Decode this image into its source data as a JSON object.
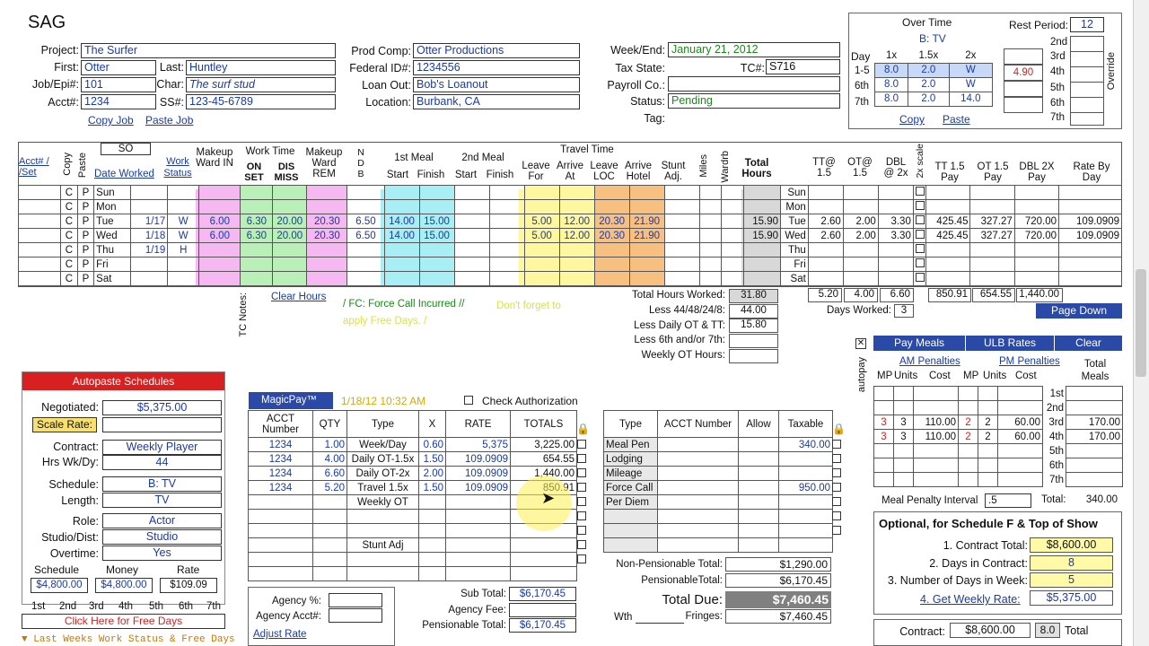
{
  "title": "SAG",
  "header": {
    "project_label": "Project:",
    "project": "The Surfer",
    "first_label": "First:",
    "first": "Otter",
    "last_label": "Last:",
    "last": "Huntley",
    "job_label": "Job/Epi#:",
    "job": "101",
    "char_label": "Char:",
    "char": "The surf stud",
    "acct_label": "Acct#:",
    "acct": "1234",
    "ss_label": "SS#:",
    "ss": "123-45-6789",
    "copy_job": "Copy Job",
    "paste_job": "Paste Job",
    "prod_comp_label": "Prod Comp:",
    "prod_comp": "Otter Productions",
    "federal_label": "Federal ID#:",
    "federal": "1234556",
    "loan_label": "Loan Out:",
    "loan": "Bob's Loanout",
    "location_label": "Location:",
    "location": "Burbank, CA",
    "week_label": "Week/End:",
    "week": "January 21, 2012",
    "tax_label": "Tax State:",
    "tc_label": "TC#:",
    "tc": "S716",
    "payroll_label": "Payroll Co.:",
    "status_label": "Status:",
    "status": "Pending",
    "tag_label": "Tag:"
  },
  "overtime": {
    "title": "Over Time",
    "subtitle": "B: TV",
    "day_label": "Day",
    "cols": [
      "1x",
      "1.5x",
      "2x"
    ],
    "rows": [
      {
        "d": "1-5",
        "a": "8.0",
        "b": "2.0",
        "c": "W",
        "extra": "4.90"
      },
      {
        "d": "6th",
        "a": "8.0",
        "b": "2.0",
        "c": "W",
        "extra": ""
      },
      {
        "d": "7th",
        "a": "8.0",
        "b": "2.0",
        "c": "14.0",
        "extra": ""
      }
    ],
    "copy": "Copy",
    "paste": "Paste",
    "override": "Override"
  },
  "rest": {
    "label": "Rest Period:",
    "value": "12",
    "days": [
      "2nd",
      "3rd",
      "4th",
      "5th",
      "6th",
      "7th"
    ]
  },
  "grid": {
    "h_acct": "Acct# / /Set",
    "h_copy": "Copy",
    "h_paste": "Paste",
    "h_so": "SO",
    "h_date": "Date Worked",
    "h_work": "Work Status",
    "h_makeup": "Makeup Ward IN",
    "h_worktime": "Work Time",
    "h_on": "ON SET",
    "h_dis": "DIS MISS",
    "h_makeup2": "Makeup Ward REM",
    "h_ndb": "N D B",
    "h_meal1": "1st Meal",
    "h_meal2": "2nd Meal",
    "h_start": "Start",
    "h_finish": "Finish",
    "h_travel": "Travel Time",
    "h_leave": "Leave For",
    "h_arrive": "Arrive At",
    "h_leaveloc": "Leave LOC",
    "h_arrhotel": "Arrive Hotel",
    "h_stunt": "Stunt Adj.",
    "h_miles": "Miles",
    "h_wardrb": "Wardrb",
    "h_total": "Total Hours",
    "h_tt": "TT@ 1.5",
    "h_ot": "OT@ 1.5",
    "h_dbl": "DBL @ 2x",
    "h_2xscale": "2x scale",
    "h_ttpay": "TT 1.5 Pay",
    "h_otpay": "OT 1.5 Pay",
    "h_dblpay": "DBL 2X Pay",
    "h_rate": "Rate By Day",
    "rows": [
      {
        "day": "Sun",
        "date": "",
        "ws": "",
        "mi": "",
        "on": "",
        "dis": "",
        "mr": "",
        "ndb": "",
        "m1s": "",
        "m1f": "",
        "lf": "",
        "aa": "",
        "ll": "",
        "ah": "",
        "tot": "",
        "tt": "",
        "ot": "",
        "dbl": "",
        "ttp": "",
        "otp": "",
        "dblp": "",
        "rate": ""
      },
      {
        "day": "Mon",
        "date": "",
        "ws": "",
        "mi": "",
        "on": "",
        "dis": "",
        "mr": "",
        "ndb": "",
        "m1s": "",
        "m1f": "",
        "lf": "",
        "aa": "",
        "ll": "",
        "ah": "",
        "tot": "",
        "tt": "",
        "ot": "",
        "dbl": "",
        "ttp": "",
        "otp": "",
        "dblp": "",
        "rate": ""
      },
      {
        "day": "Tue",
        "date": "1/17",
        "ws": "W",
        "mi": "6.00",
        "on": "6.30",
        "dis": "20.00",
        "mr": "20.30",
        "ndb": "6.50",
        "m1s": "14.00",
        "m1f": "15.00",
        "lf": "5.00",
        "aa": "12.00",
        "ll": "20.30",
        "ah": "21.90",
        "tot": "15.90",
        "tt": "2.60",
        "ot": "2.00",
        "dbl": "3.30",
        "ttp": "425.45",
        "otp": "327.27",
        "dblp": "720.00",
        "rate": "109.0909"
      },
      {
        "day": "Wed",
        "date": "1/18",
        "ws": "W",
        "mi": "6.00",
        "on": "6.30",
        "dis": "20.00",
        "mr": "20.30",
        "ndb": "6.50",
        "m1s": "14.00",
        "m1f": "15.00",
        "lf": "5.00",
        "aa": "12.00",
        "ll": "20.30",
        "ah": "21.90",
        "tot": "15.90",
        "tt": "2.60",
        "ot": "2.00",
        "dbl": "3.30",
        "ttp": "425.45",
        "otp": "327.27",
        "dblp": "720.00",
        "rate": "109.0909"
      },
      {
        "day": "Thu",
        "date": "1/19",
        "ws": "H",
        "mi": "",
        "on": "",
        "dis": "",
        "mr": "",
        "ndb": "",
        "m1s": "",
        "m1f": "",
        "lf": "",
        "aa": "",
        "ll": "",
        "ah": "",
        "tot": "",
        "tt": "",
        "ot": "",
        "dbl": "",
        "ttp": "",
        "otp": "",
        "dblp": "",
        "rate": ""
      },
      {
        "day": "Fri",
        "date": "",
        "ws": "",
        "mi": "",
        "on": "",
        "dis": "",
        "mr": "",
        "ndb": "",
        "m1s": "",
        "m1f": "",
        "lf": "",
        "aa": "",
        "ll": "",
        "ah": "",
        "tot": "",
        "tt": "",
        "ot": "",
        "dbl": "",
        "ttp": "",
        "otp": "",
        "dblp": "",
        "rate": ""
      },
      {
        "day": "Sat",
        "date": "",
        "ws": "",
        "mi": "",
        "on": "",
        "dis": "",
        "mr": "",
        "ndb": "",
        "m1s": "",
        "m1f": "",
        "lf": "",
        "aa": "",
        "ll": "",
        "ah": "",
        "tot": "",
        "tt": "",
        "ot": "",
        "dbl": "",
        "ttp": "",
        "otp": "",
        "dblp": "",
        "rate": ""
      }
    ],
    "totals": {
      "tt": "5.20",
      "ot": "4.00",
      "dbl": "6.60",
      "ttp": "850.91",
      "otp": "654.55",
      "dblp": "1,440.00"
    }
  },
  "summary": {
    "tc_notes": "TC Notes:",
    "clear_hours": "Clear Hours",
    "fc_note": "/  FC: Force Call Incurred  //",
    "free_note": "Don't forget to apply Free Days.  /",
    "thw_label": "Total Hours Worked:",
    "thw": "31.80",
    "less44_label": "Less 44/48/24/8:",
    "less44": "44.00",
    "lessdaily_label": "Less Daily OT & TT:",
    "lessdaily": "15.80",
    "less6_label": "Less 6th and/or 7th:",
    "less6": "",
    "weekly_label": "Weekly OT Hours:",
    "weekly": "",
    "days_worked_label": "Days Worked:",
    "days_worked": "3",
    "page_down": "Page Down"
  },
  "autopaste": {
    "title": "Autopaste Schedules",
    "negotiated_label": "Negotiated:",
    "negotiated": "$5,375.00",
    "scale_label": "Scale Rate:",
    "contract_label": "Contract:",
    "contract": "Weekly Player",
    "hrs_label": "Hrs Wk/Dy:",
    "hrs": "44",
    "schedule_label": "Schedule:",
    "schedule": "B: TV",
    "length_label": "Length:",
    "length": "TV",
    "role_label": "Role:",
    "role": "Actor",
    "studio_label": "Studio/Dist:",
    "studio": "Studio",
    "overtime_label": "Overtime:",
    "overtime": "Yes",
    "col_schedule": "Schedule",
    "col_money": "Money",
    "col_rate": "Rate",
    "v_schedule": "$4,800.00",
    "v_money": "$4,800.00",
    "v_rate": "$109.09",
    "days": [
      "1st",
      "2nd",
      "3rd",
      "4th",
      "5th",
      "6th",
      "7th"
    ],
    "free_days": "Click Here for Free Days",
    "last_weeks": "Last Weeks Work Status & Free Days"
  },
  "magic": {
    "tab": "MagicPay™",
    "timestamp": "1/18/12 10:32 AM",
    "check_auth": "Check Authorization",
    "cols": [
      "ACCT Number",
      "QTY",
      "Type",
      "X",
      "RATE",
      "TOTALS"
    ],
    "rows": [
      {
        "acct": "1234",
        "qty": "1.00",
        "type": "Week/Day",
        "x": "0.60",
        "rate": "5,375",
        "total": "3,225.00"
      },
      {
        "acct": "1234",
        "qty": "4.00",
        "type": "Daily OT-1.5x",
        "x": "1.50",
        "rate": "109.0909",
        "total": "654.55"
      },
      {
        "acct": "1234",
        "qty": "6.60",
        "type": "Daily OT-2x",
        "x": "2.00",
        "rate": "109.0909",
        "total": "1,440.00"
      },
      {
        "acct": "1234",
        "qty": "5.20",
        "type": "Travel 1.5x",
        "x": "1.50",
        "rate": "109.0909",
        "total": "850.91"
      },
      {
        "acct": "",
        "qty": "",
        "type": "Weekly OT",
        "x": "",
        "rate": "",
        "total": ""
      },
      {
        "acct": "",
        "qty": "",
        "type": "",
        "x": "",
        "rate": "",
        "total": ""
      },
      {
        "acct": "",
        "qty": "",
        "type": "",
        "x": "",
        "rate": "",
        "total": ""
      },
      {
        "acct": "",
        "qty": "",
        "type": "Stunt Adj",
        "x": "",
        "rate": "",
        "total": ""
      },
      {
        "acct": "",
        "qty": "",
        "type": "",
        "x": "",
        "rate": "",
        "total": ""
      },
      {
        "acct": "",
        "qty": "",
        "type": "",
        "x": "",
        "rate": "",
        "total": ""
      }
    ],
    "agency_label": "Agency %:",
    "agency_acct_label": "Agency Acct#:",
    "adjust_rate": "Adjust Rate",
    "sub_total_label": "Sub Total:",
    "sub_total": "$6,170.45",
    "agency_fee_label": "Agency Fee:",
    "agency_fee": "",
    "pensionable_label": "Pensionable Total:",
    "pensionable": "$6,170.45"
  },
  "allow": {
    "cols": [
      "Type",
      "ACCT Number",
      "Allow",
      "Taxable"
    ],
    "rows": [
      {
        "type": "Meal Pen",
        "taxable": "340.00"
      },
      {
        "type": "Lodging",
        "taxable": ""
      },
      {
        "type": "Mileage",
        "taxable": ""
      },
      {
        "type": "Force Call",
        "taxable": "950.00"
      },
      {
        "type": "Per Diem",
        "taxable": ""
      },
      {
        "type": "",
        "taxable": ""
      },
      {
        "type": "",
        "taxable": ""
      },
      {
        "type": "",
        "taxable": ""
      }
    ],
    "nonpens_label": "Non-Pensionable Total:",
    "nonpens": "$1,290.00",
    "penstotal_label": "PensionableTotal:",
    "penstotal": "$6,170.45",
    "due_label": "Total Due:",
    "due": "$7,460.45",
    "wth_label": "Wth",
    "fringes_label": "Fringes:",
    "fringes": "$7,460.45"
  },
  "meals": {
    "pay_meals": "Pay Meals",
    "ulb_rates": "ULB Rates",
    "clear": "Clear",
    "autopay": "autopay",
    "am": "AM Penalties",
    "pm": "PM Penalties",
    "total_meals": "Total Meals",
    "sub": [
      "MP",
      "Units",
      "Cost",
      "MP",
      "Units",
      "Cost"
    ],
    "days": [
      "1st",
      "2nd",
      "3rd",
      "4th",
      "5th",
      "6th",
      "7th"
    ],
    "rows": [
      {
        "mp": "",
        "u": "",
        "c": "",
        "mp2": "",
        "u2": "",
        "c2": "",
        "t": ""
      },
      {
        "mp": "",
        "u": "",
        "c": "",
        "mp2": "",
        "u2": "",
        "c2": "",
        "t": ""
      },
      {
        "mp": "3",
        "u": "3",
        "c": "110.00",
        "mp2": "2",
        "u2": "2",
        "c2": "60.00",
        "t": "170.00"
      },
      {
        "mp": "3",
        "u": "3",
        "c": "110.00",
        "mp2": "2",
        "u2": "2",
        "c2": "60.00",
        "t": "170.00"
      },
      {
        "mp": "",
        "u": "",
        "c": "",
        "mp2": "",
        "u2": "",
        "c2": "",
        "t": ""
      },
      {
        "mp": "",
        "u": "",
        "c": "",
        "mp2": "",
        "u2": "",
        "c2": "",
        "t": ""
      },
      {
        "mp": "",
        "u": "",
        "c": "",
        "mp2": "",
        "u2": "",
        "c2": "",
        "t": ""
      }
    ],
    "interval_label": "Meal Penalty Interval",
    "interval": ".5",
    "total_label": "Total:",
    "total": "340.00"
  },
  "optional": {
    "title": "Optional, for Schedule F & Top of Show",
    "l1": "1. Contract Total:",
    "v1": "$8,600.00",
    "l2": "2. Days in Contract:",
    "v2": "8",
    "l3": "3. Number of Days in Week:",
    "v3": "5",
    "l4": "4. Get Weekly Rate:",
    "v4": "$5,375.00",
    "contract_label": "Contract:",
    "contract": "$8,600.00",
    "contract_days": "8.0",
    "total_label": "Total"
  }
}
